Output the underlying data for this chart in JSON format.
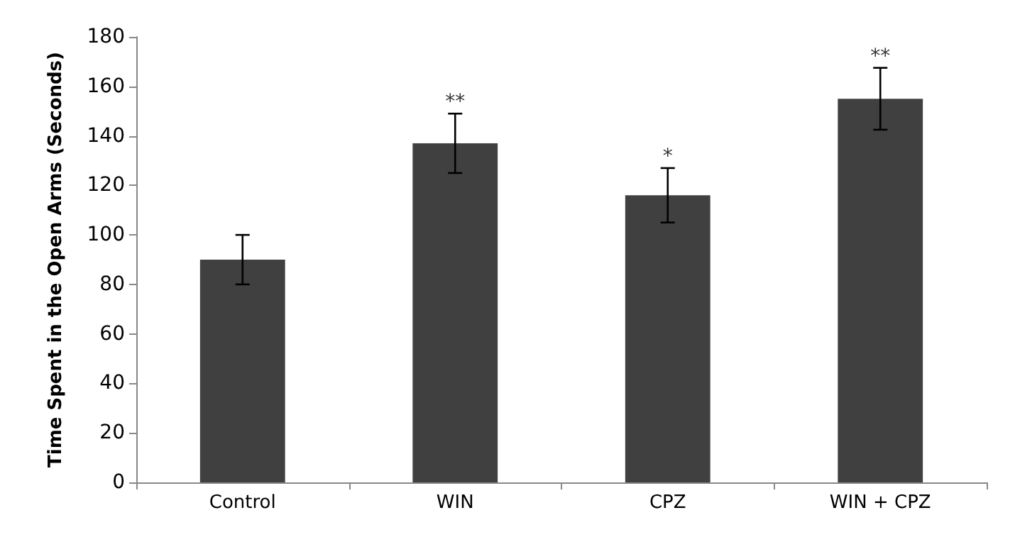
{
  "chart_data": {
    "type": "bar",
    "ylabel": "Time Spent in the Open Arms (Seconds)",
    "categories": [
      "Control",
      "WIN",
      "CPZ",
      "WIN + CPZ"
    ],
    "values": [
      90,
      137,
      116,
      155
    ],
    "errors": [
      10,
      12,
      11,
      12.5
    ],
    "color": "#404040",
    "ylim": [
      0,
      180
    ],
    "yticks": [
      0,
      20,
      40,
      60,
      80,
      100,
      120,
      140,
      160,
      180
    ],
    "grid": false,
    "annotations": [
      {
        "text": "**",
        "x": "WIN",
        "y": 149
      },
      {
        "text": "*",
        "x": "CPZ",
        "y": 127
      },
      {
        "text": "**",
        "x": "WIN + CPZ",
        "y": 167.5
      }
    ]
  }
}
